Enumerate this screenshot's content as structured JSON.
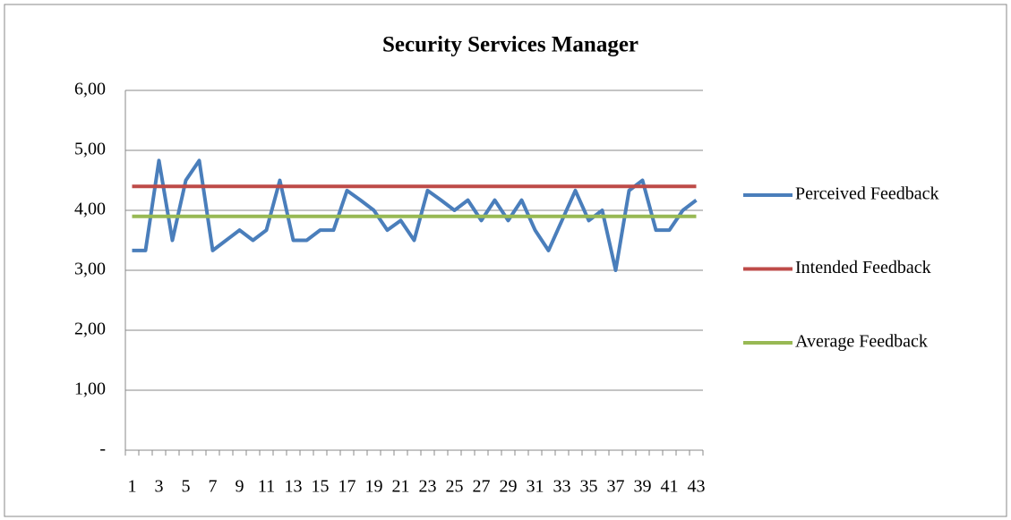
{
  "chart_data": {
    "type": "line",
    "title": "Security Services Manager",
    "categories": [
      1,
      null,
      3,
      null,
      5,
      null,
      7,
      null,
      9,
      null,
      11,
      null,
      13,
      null,
      15,
      null,
      17,
      null,
      19,
      null,
      21,
      null,
      23,
      null,
      25,
      null,
      27,
      null,
      29,
      null,
      31,
      null,
      33,
      null,
      35,
      null,
      37,
      null,
      39,
      null,
      41,
      null,
      43
    ],
    "series": [
      {
        "name": "Perceived Feedback",
        "color": "#4a7ebb",
        "values": [
          3.33,
          3.33,
          4.83,
          3.5,
          4.5,
          4.83,
          3.33,
          3.5,
          3.67,
          3.5,
          3.67,
          4.5,
          3.5,
          3.5,
          3.67,
          3.67,
          4.33,
          4.17,
          4.0,
          3.67,
          3.83,
          3.5,
          4.33,
          4.17,
          4.0,
          4.17,
          3.83,
          4.17,
          3.83,
          4.17,
          3.67,
          3.33,
          3.83,
          4.33,
          3.83,
          4.0,
          3.0,
          4.33,
          4.5,
          3.67,
          3.67,
          4.0,
          4.17
        ]
      },
      {
        "name": "Intended Feedback",
        "color": "#be4b48",
        "values": [
          4.4,
          4.4,
          4.4,
          4.4,
          4.4,
          4.4,
          4.4,
          4.4,
          4.4,
          4.4,
          4.4,
          4.4,
          4.4,
          4.4,
          4.4,
          4.4,
          4.4,
          4.4,
          4.4,
          4.4,
          4.4,
          4.4,
          4.4,
          4.4,
          4.4,
          4.4,
          4.4,
          4.4,
          4.4,
          4.4,
          4.4,
          4.4,
          4.4,
          4.4,
          4.4,
          4.4,
          4.4,
          4.4,
          4.4,
          4.4,
          4.4,
          4.4,
          4.4
        ]
      },
      {
        "name": "Average Feedback",
        "color": "#98b954",
        "values": [
          3.9,
          3.9,
          3.9,
          3.9,
          3.9,
          3.9,
          3.9,
          3.9,
          3.9,
          3.9,
          3.9,
          3.9,
          3.9,
          3.9,
          3.9,
          3.9,
          3.9,
          3.9,
          3.9,
          3.9,
          3.9,
          3.9,
          3.9,
          3.9,
          3.9,
          3.9,
          3.9,
          3.9,
          3.9,
          3.9,
          3.9,
          3.9,
          3.9,
          3.9,
          3.9,
          3.9,
          3.9,
          3.9,
          3.9,
          3.9,
          3.9,
          3.9,
          3.9
        ]
      }
    ],
    "ylim": [
      0,
      6
    ],
    "yticks": [
      {
        "value": 0,
        "label": "-"
      },
      {
        "value": 1,
        "label": "1,00"
      },
      {
        "value": 2,
        "label": "2,00"
      },
      {
        "value": 3,
        "label": "3,00"
      },
      {
        "value": 4,
        "label": "4,00"
      },
      {
        "value": 5,
        "label": "5,00"
      },
      {
        "value": 6,
        "label": "6,00"
      }
    ],
    "grid": true,
    "legend": "right"
  }
}
